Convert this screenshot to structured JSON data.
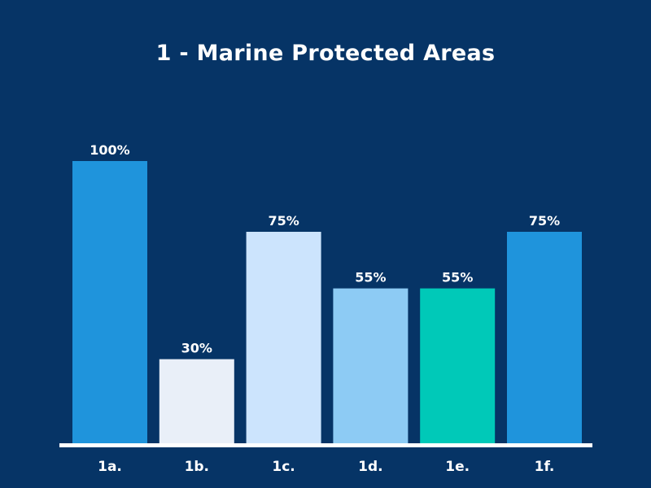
{
  "chart_data": {
    "type": "bar",
    "title": "1 - Marine Protected Areas",
    "categories": [
      "1a.",
      "1b.",
      "1c.",
      "1d.",
      "1e.",
      "1f."
    ],
    "values": [
      100,
      30,
      75,
      55,
      55,
      75
    ],
    "value_labels": [
      "100%",
      "30%",
      "75%",
      "55%",
      "55%",
      "75%"
    ],
    "bar_colors": [
      "#1f94dc",
      "#e9eff8",
      "#cce4fd",
      "#8dcbf4",
      "#00c9b8",
      "#1f94dc"
    ],
    "ylim": [
      0,
      100
    ],
    "grid": false,
    "background": "#063466",
    "axis_color": "#ffffff",
    "text_color": "#ffffff"
  }
}
